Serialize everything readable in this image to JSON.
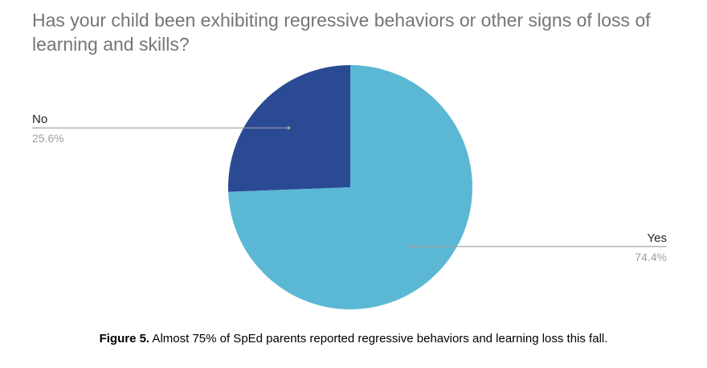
{
  "chart_data": {
    "type": "pie",
    "title": "Has your child been exhibiting regressive behaviors or other signs of loss of learning and skills?",
    "slices": [
      {
        "label": "Yes",
        "value": 74.4,
        "value_label": "74.4%",
        "color": "#5bb8d4"
      },
      {
        "label": "No",
        "value": 25.6,
        "value_label": "25.6%",
        "color": "#2b4a94"
      }
    ],
    "legend": "none",
    "label_color": "#212121",
    "value_label_color": "#9e9e9e",
    "leader_line_color": "#9e9e9e"
  },
  "caption": {
    "label": "Figure 5.",
    "text": " Almost 75% of SpEd parents reported regressive behaviors and learning loss this fall."
  }
}
